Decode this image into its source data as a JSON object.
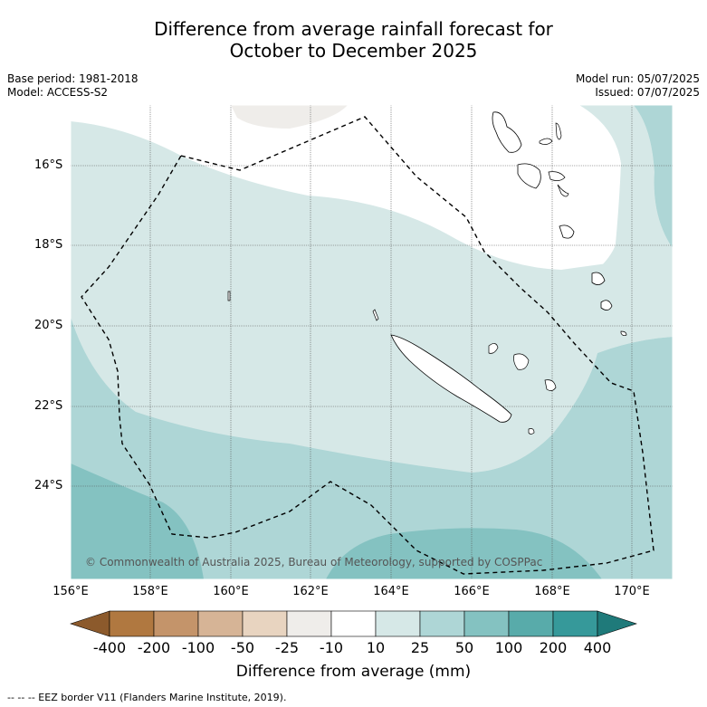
{
  "title": {
    "line1": "Difference from average rainfall forecast for",
    "line2": "October to December 2025"
  },
  "meta": {
    "base_period": "Base period: 1981-2018",
    "model": "Model: ACCESS-S2",
    "model_run": "Model run: 05/07/2025",
    "issued": "Issued: 07/07/2025"
  },
  "map": {
    "lat_labels": [
      "16°S",
      "18°S",
      "20°S",
      "22°S",
      "24°S"
    ],
    "lon_labels": [
      "156°E",
      "158°E",
      "160°E",
      "162°E",
      "164°E",
      "166°E",
      "168°E",
      "170°E"
    ],
    "copyright": "© Commonwealth of Australia 2025, Bureau of Meteorology, supported by COSPPac"
  },
  "colorbar": {
    "ticks": [
      "-400",
      "-200",
      "-100",
      "-50",
      "-25",
      "-10",
      "10",
      "25",
      "50",
      "100",
      "200",
      "400"
    ],
    "colors": [
      "#8c5a2c",
      "#b07840",
      "#c4946a",
      "#d6b496",
      "#e8d4c0",
      "#efedea",
      "#ffffff",
      "#d6e8e7",
      "#aed6d6",
      "#84c2c1",
      "#58abaa",
      "#36999a",
      "#1f7a7a"
    ],
    "label": "Difference from average (mm)"
  },
  "footnote": "--  --  -- EEZ border V11 (Flanders Marine Institute, 2019)."
}
